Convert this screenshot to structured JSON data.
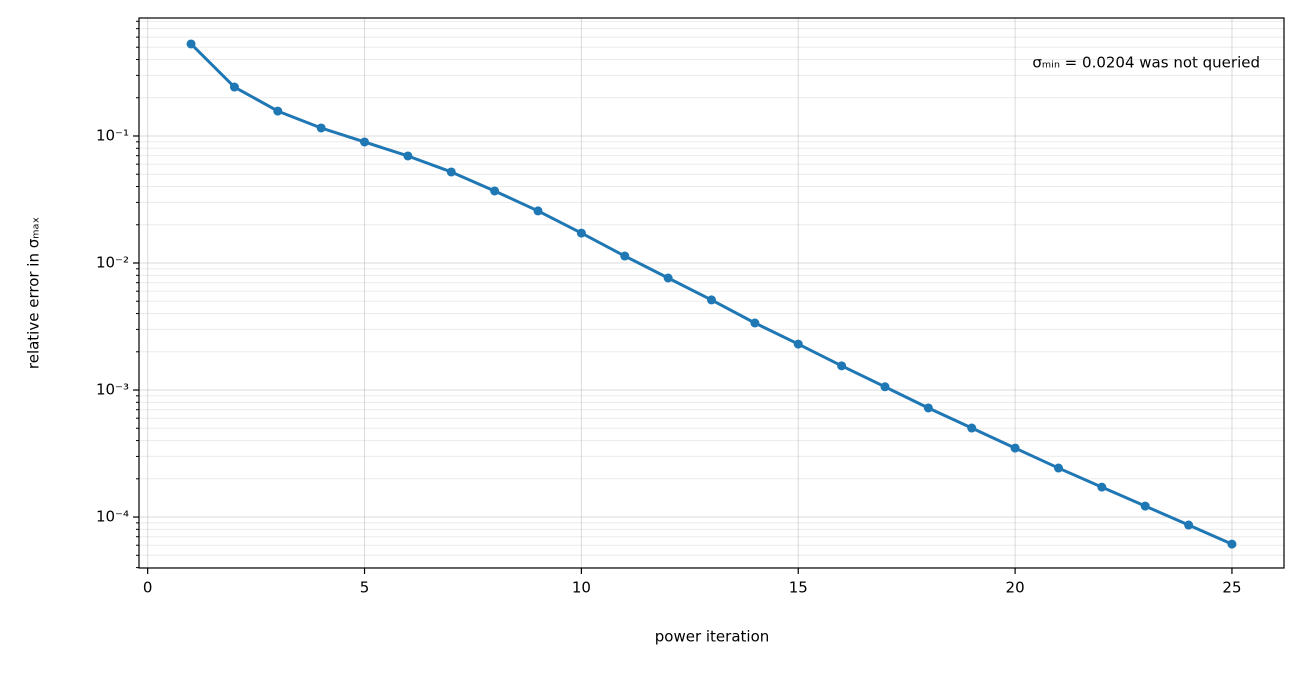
{
  "chart_data": {
    "type": "line",
    "xlabel": "power iteration",
    "ylabel": "relative error in σₘₐₓ",
    "annotation": "σₘᵢₙ = 0.0204 was not queried",
    "x": [
      1,
      2,
      3,
      4,
      5,
      6,
      7,
      8,
      9,
      10,
      11,
      12,
      13,
      14,
      15,
      16,
      17,
      18,
      19,
      20,
      21,
      22,
      23,
      24,
      25
    ],
    "series": [
      {
        "color": "#1f77b4",
        "values": [
          0.53,
          0.243,
          0.157,
          0.1156,
          0.0897,
          0.0696,
          0.0521,
          0.0369,
          0.0257,
          0.0172,
          0.01135,
          0.00762,
          0.00512,
          0.00337,
          0.0023,
          0.00155,
          0.00106,
          0.000722,
          0.000502,
          0.000349,
          0.000243,
          0.000172,
          0.000122,
          8.65e-05,
          6.12e-05
        ]
      }
    ],
    "xlim": [
      -0.2,
      26.2
    ],
    "xticks": [
      0,
      5,
      10,
      15,
      20,
      25
    ],
    "ylim": [
      3.97e-05,
      0.849
    ],
    "log_y": true,
    "yticks": [
      {
        "value": 0.1,
        "label": "10⁻¹"
      },
      {
        "value": 0.01,
        "label": "10⁻²"
      },
      {
        "value": 0.001,
        "label": "10⁻³"
      },
      {
        "value": 0.0001,
        "label": "10⁻⁴"
      }
    ],
    "grid": true,
    "minor_grid": true
  }
}
